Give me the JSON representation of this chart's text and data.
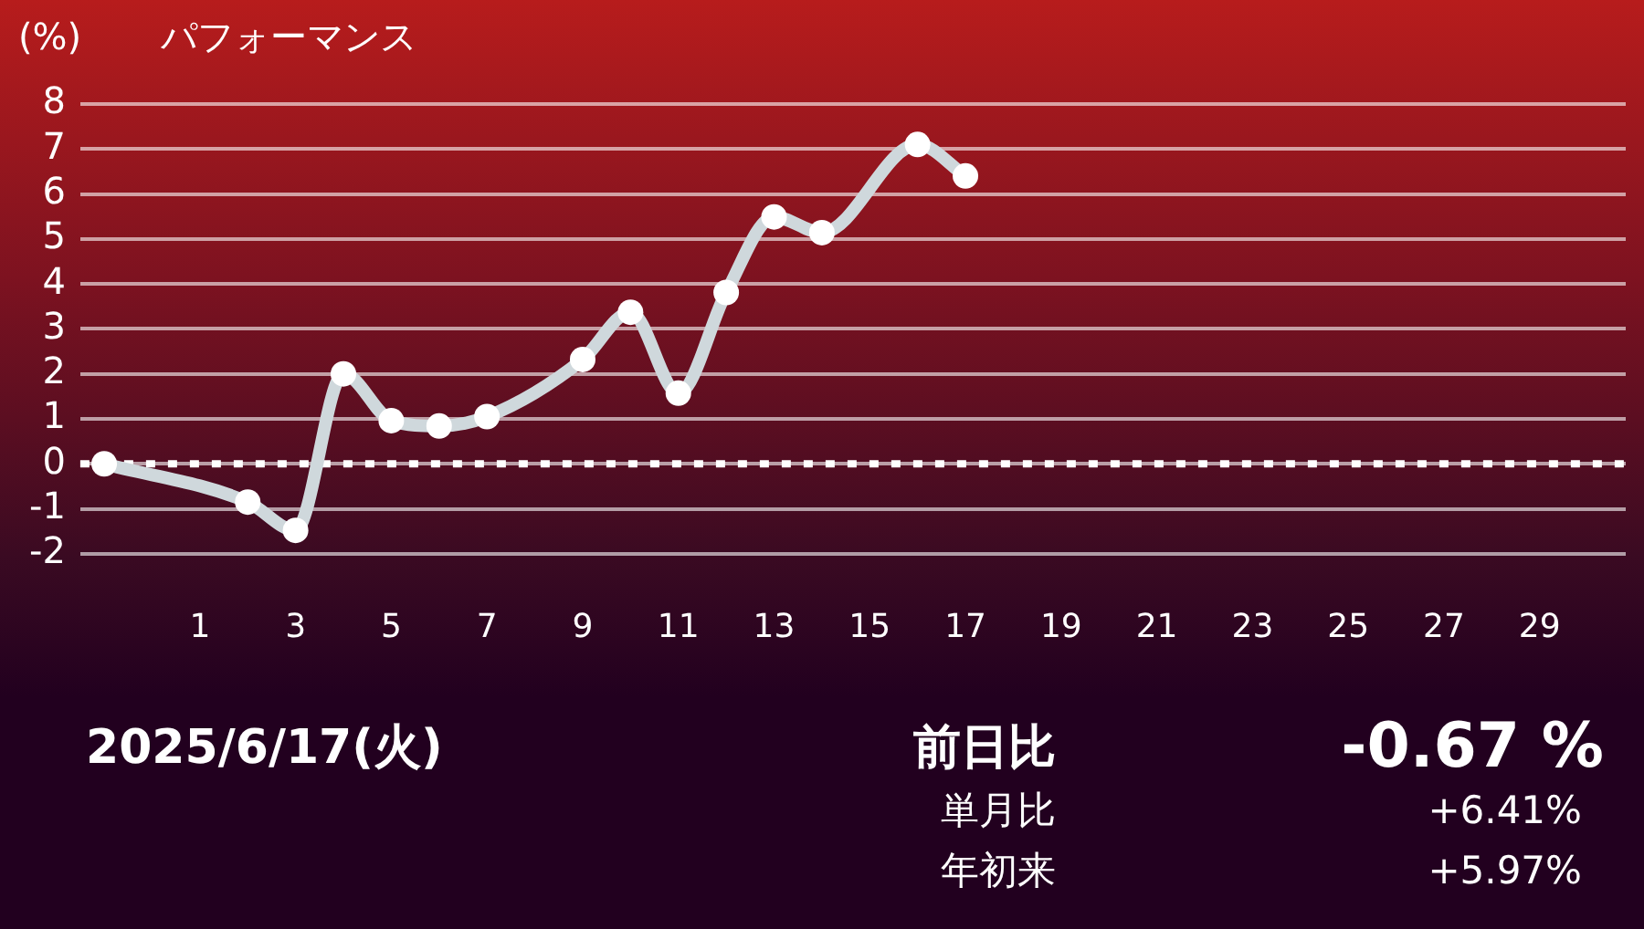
{
  "chart_data": {
    "type": "line",
    "title": "パフォーマンス",
    "ylabel": "(%)",
    "x": [
      -1,
      2,
      3,
      4,
      5,
      6,
      7,
      9,
      10,
      11,
      12,
      13,
      14,
      16,
      17
    ],
    "series": [
      {
        "color": "#cfd8dc",
        "values": [
          0,
          -0.85,
          -1.48,
          2.0,
          0.96,
          0.84,
          1.05,
          2.32,
          3.37,
          1.57,
          3.81,
          5.49,
          5.14,
          7.1,
          6.4
        ]
      }
    ],
    "xlim": [
      -1.5,
      30.8
    ],
    "xticks": [
      1,
      3,
      5,
      7,
      9,
      11,
      13,
      15,
      17,
      19,
      21,
      23,
      25,
      27,
      29
    ],
    "ylim": [
      -2,
      8
    ],
    "yticks": [
      -2,
      -1,
      0,
      1,
      2,
      3,
      4,
      5,
      6,
      7,
      8
    ],
    "grid": "y",
    "legend": false,
    "marker": "circle",
    "line_style": "solid",
    "ref_lines": [
      {
        "axis": "y",
        "value": 0,
        "color": "#ffffff",
        "line_style": "dotted"
      }
    ],
    "annotations": [
      "2025/6/17(火)",
      "前日比",
      "-0.67 %",
      "単月比",
      "+6.41%",
      "年初来",
      "+5.97%"
    ]
  }
}
